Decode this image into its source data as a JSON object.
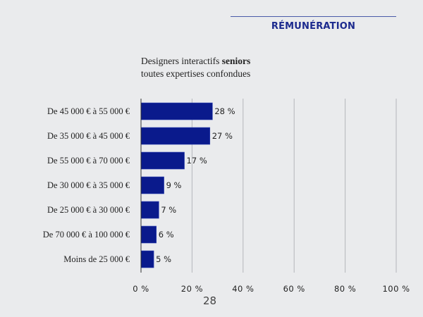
{
  "header": {
    "section": "RÉMUNÉRATION"
  },
  "page_number": "28",
  "chart_data": {
    "type": "bar",
    "orientation": "horizontal",
    "title_line1_regular": "Designers interactifs ",
    "title_line1_bold": "seniors",
    "title_line2": "toutes expertises confondues",
    "categories": [
      "De 45 000 € à 55 000 €",
      "De 35 000 € à 45 000 €",
      "De 55 000 € à 70 000 €",
      "De 30 000 € à 35 000 €",
      "De 25 000 € à 30 000 €",
      "De 70 000 € à 100 000 €",
      "Moins de 25 000 €"
    ],
    "values": [
      28,
      27,
      17,
      9,
      7,
      6,
      5
    ],
    "data_labels": [
      "28 %",
      "27 %",
      "17 %",
      "9 %",
      "7 %",
      "6 %",
      "5 %"
    ],
    "xlim": [
      0,
      100
    ],
    "xticks": [
      0,
      20,
      40,
      60,
      80,
      100
    ],
    "xtick_labels": [
      "0 %",
      "20 %",
      "40 %",
      "60 %",
      "80 %",
      "100 %"
    ],
    "grid": true,
    "bar_color": "#0a1a8c",
    "accent_color": "#1c2a8e"
  }
}
